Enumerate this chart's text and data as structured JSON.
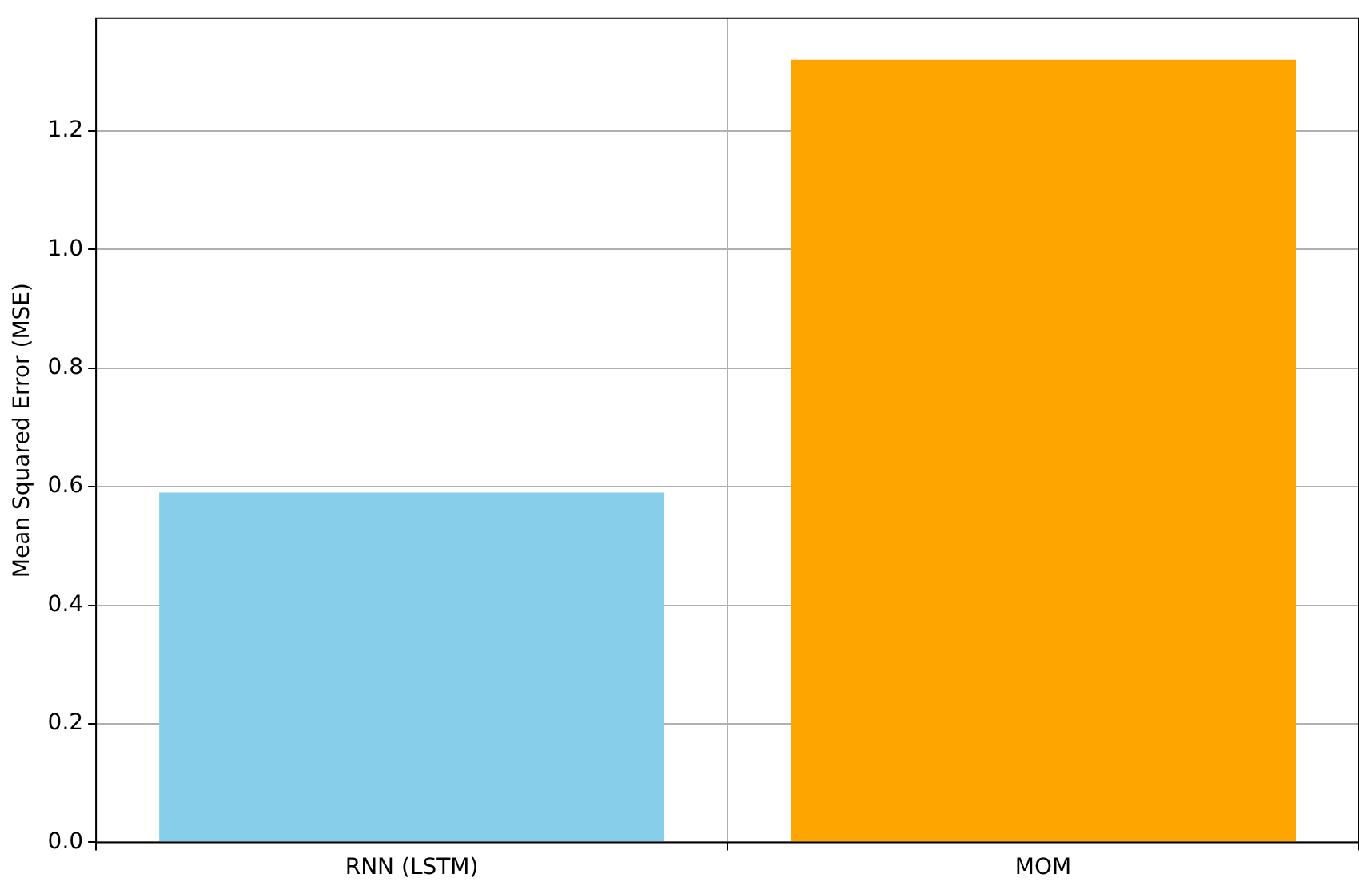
{
  "chart_data": {
    "type": "bar",
    "ylabel": "Mean Squared Error (MSE)",
    "categories": [
      "RNN (LSTM)",
      "MOM"
    ],
    "values": [
      0.59,
      1.32
    ],
    "colors": [
      "#87ceeb",
      "#ffa500"
    ],
    "ylim": [
      0,
      1.39
    ],
    "yticks": [
      {
        "value": 0,
        "label": "0.0"
      },
      {
        "value": 0.2,
        "label": "0.2"
      },
      {
        "value": 0.4,
        "label": "0.4"
      },
      {
        "value": 0.6,
        "label": "0.6"
      },
      {
        "value": 0.8,
        "label": "0.8"
      },
      {
        "value": 1.0,
        "label": "1.0"
      },
      {
        "value": 1.2,
        "label": "1.2"
      }
    ],
    "grid": true
  }
}
